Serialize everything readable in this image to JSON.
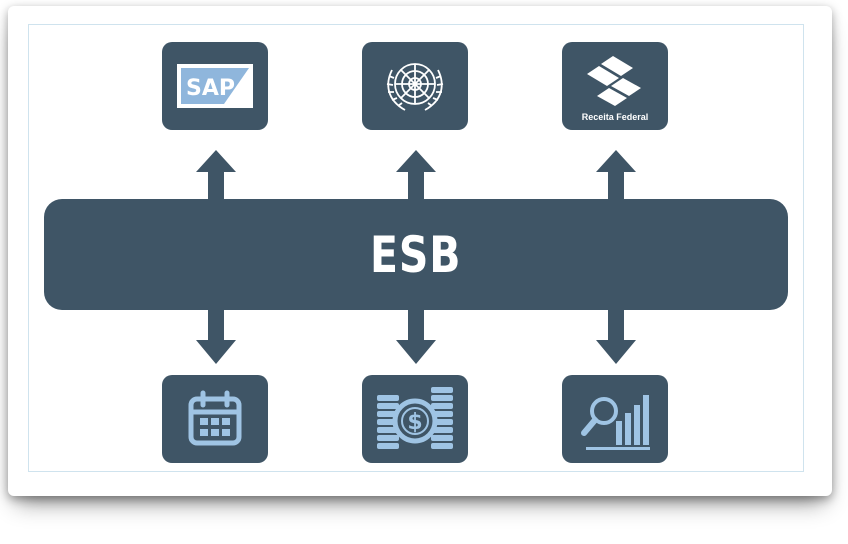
{
  "bus": {
    "label": "ESB"
  },
  "top_nodes": [
    {
      "id": "sap",
      "icon": "sap-logo-icon",
      "logo_text": "SAP"
    },
    {
      "id": "un",
      "icon": "united-nations-emblem-icon"
    },
    {
      "id": "receita",
      "icon": "receita-federal-logo-icon",
      "logo_text": "Receita Federal"
    }
  ],
  "bottom_nodes": [
    {
      "id": "calendar",
      "icon": "calendar-icon"
    },
    {
      "id": "money",
      "icon": "coins-dollar-icon"
    },
    {
      "id": "analytics",
      "icon": "search-chart-icon"
    }
  ],
  "colors": {
    "node_fill": "#3f5566",
    "icon_color": "#9fc4e4",
    "arrow_color": "#3f5566",
    "background": "#ffffff"
  }
}
